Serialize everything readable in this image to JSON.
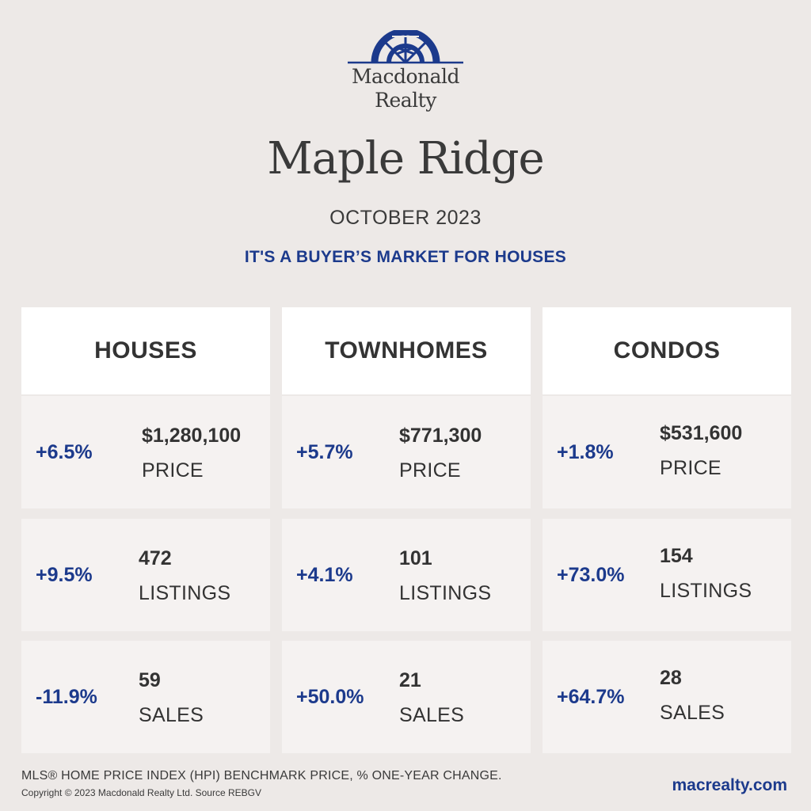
{
  "brand": {
    "logo_line1": "Macdonald",
    "logo_line2": "Realty",
    "colors": {
      "navy": "#1c3a8c",
      "text": "#333333",
      "background": "#ede9e7",
      "card": "#f5f2f1",
      "header": "#ffffff"
    }
  },
  "title": {
    "city": "Maple Ridge",
    "month": "OCTOBER 2023",
    "headline": "IT'S A BUYER’S MARKET FOR HOUSES"
  },
  "columns": [
    {
      "name": "HOUSES",
      "stats": [
        {
          "change": "+6.5%",
          "value": "$1,280,100",
          "label": "PRICE"
        },
        {
          "change": "+9.5%",
          "value": "472",
          "label": "LISTINGS"
        },
        {
          "change": "-11.9%",
          "value": "59",
          "label": "SALES"
        }
      ]
    },
    {
      "name": "TOWNHOMES",
      "stats": [
        {
          "change": "+5.7%",
          "value": "$771,300",
          "label": "PRICE"
        },
        {
          "change": "+4.1%",
          "value": "101",
          "label": "LISTINGS"
        },
        {
          "change": "+50.0%",
          "value": "21",
          "label": "SALES"
        }
      ]
    },
    {
      "name": "CONDOS",
      "stats": [
        {
          "change": "+1.8%",
          "value": "$531,600",
          "label": "PRICE"
        },
        {
          "change": "+73.0%",
          "value": "154",
          "label": "LISTINGS"
        },
        {
          "change": "+64.7%",
          "value": "28",
          "label": "SALES"
        }
      ]
    }
  ],
  "footer": {
    "note": "MLS® HOME PRICE INDEX (HPI) BENCHMARK PRICE, % ONE-YEAR CHANGE.",
    "copyright": "Copyright © 2023 Macdonald Realty Ltd. Source REBGV",
    "website": "macrealty.com"
  }
}
